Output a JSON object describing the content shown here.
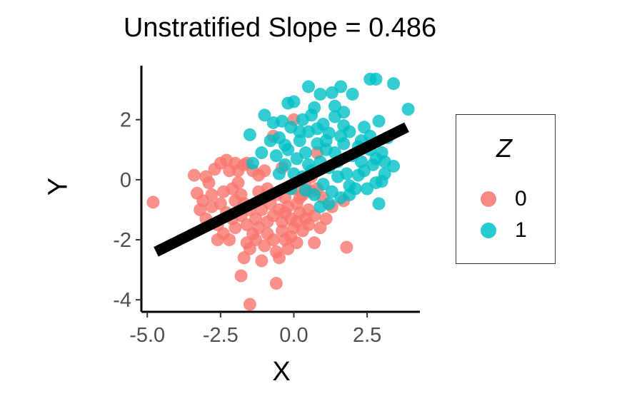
{
  "chart_data": {
    "type": "scatter",
    "title": "Unstratified Slope = 0.486",
    "xlabel": "X",
    "ylabel": "Y",
    "xlim": [
      -5.2,
      4.3
    ],
    "ylim": [
      -4.4,
      3.8
    ],
    "x_ticks": [
      -5.0,
      -2.5,
      0.0,
      2.5
    ],
    "x_tick_labels": [
      "-5.0",
      "-2.5",
      "0.0",
      "2.5"
    ],
    "y_ticks": [
      -4,
      -2,
      0,
      2
    ],
    "y_tick_labels": [
      "-4",
      "-2",
      "0",
      "2"
    ],
    "grid": false,
    "legend": {
      "title": "Z",
      "placement": "right",
      "entries": [
        {
          "label": "0",
          "color": "#F8766D"
        },
        {
          "label": "1",
          "color": "#00BFC4"
        }
      ]
    },
    "series": [
      {
        "name": "0",
        "color": "#F8766D",
        "points": [
          [
            -4.8,
            -0.75
          ],
          [
            -3.4,
            0.15
          ],
          [
            -3.0,
            0.1
          ],
          [
            -2.7,
            0.35
          ],
          [
            -2.5,
            0.55
          ],
          [
            -2.3,
            0.65
          ],
          [
            -2.2,
            0.3
          ],
          [
            -2.0,
            0.55
          ],
          [
            -1.9,
            0.3
          ],
          [
            -1.7,
            0.5
          ],
          [
            -1.6,
            0.55
          ],
          [
            -1.4,
            0.3
          ],
          [
            -1.2,
            0.15
          ],
          [
            -1.0,
            0.3
          ],
          [
            -1.9,
            -0.1
          ],
          [
            -1.8,
            -0.5
          ],
          [
            -1.7,
            -0.8
          ],
          [
            -2.1,
            -0.3
          ],
          [
            -2.4,
            -0.4
          ],
          [
            -2.9,
            -0.1
          ],
          [
            -3.1,
            -0.7
          ],
          [
            -3.2,
            -1.0
          ],
          [
            -3.0,
            -1.3
          ],
          [
            -2.8,
            -0.9
          ],
          [
            -2.6,
            -1.5
          ],
          [
            -2.5,
            -0.8
          ],
          [
            -2.3,
            -1.1
          ],
          [
            -2.1,
            -1.3
          ],
          [
            -2.4,
            -1.8
          ],
          [
            -2.6,
            -2.0
          ],
          [
            -2.2,
            -2.0
          ],
          [
            -2.0,
            -1.6
          ],
          [
            -1.8,
            -1.2
          ],
          [
            -1.5,
            -1.0
          ],
          [
            -1.6,
            -1.5
          ],
          [
            -1.4,
            -1.8
          ],
          [
            -1.3,
            -1.3
          ],
          [
            -1.1,
            -1.0
          ],
          [
            -1.0,
            -0.6
          ],
          [
            -0.9,
            -0.3
          ],
          [
            -0.8,
            -0.8
          ],
          [
            -0.7,
            -1.2
          ],
          [
            -0.6,
            -0.5
          ],
          [
            -0.5,
            -1.0
          ],
          [
            -0.4,
            -1.4
          ],
          [
            -0.3,
            -0.6
          ],
          [
            -0.2,
            -0.9
          ],
          [
            -0.1,
            -1.3
          ],
          [
            0.0,
            -1.6
          ],
          [
            0.1,
            -0.8
          ],
          [
            0.2,
            -1.1
          ],
          [
            0.3,
            -0.5
          ],
          [
            0.4,
            -1.3
          ],
          [
            0.5,
            -1.0
          ],
          [
            0.6,
            -0.4
          ],
          [
            0.7,
            -1.2
          ],
          [
            -1.2,
            -1.6
          ],
          [
            -1.3,
            -2.0
          ],
          [
            -1.5,
            -2.3
          ],
          [
            -1.7,
            -2.6
          ],
          [
            -1.8,
            -3.2
          ],
          [
            -1.6,
            -2.1
          ],
          [
            -1.0,
            -2.2
          ],
          [
            -0.9,
            -1.8
          ],
          [
            -0.7,
            -2.0
          ],
          [
            -0.6,
            -2.4
          ],
          [
            -0.5,
            -2.6
          ],
          [
            -0.3,
            -2.0
          ],
          [
            -0.2,
            -2.3
          ],
          [
            -0.1,
            -1.9
          ],
          [
            0.1,
            -2.1
          ],
          [
            0.3,
            -1.7
          ],
          [
            0.5,
            -1.5
          ],
          [
            -1.5,
            -4.15
          ],
          [
            -0.6,
            -3.45
          ],
          [
            -1.1,
            -2.7
          ],
          [
            -0.9,
            -1.4
          ],
          [
            -0.4,
            -1.7
          ],
          [
            0.0,
            -0.3
          ],
          [
            0.2,
            -0.6
          ],
          [
            0.4,
            -0.2
          ],
          [
            0.6,
            0.1
          ],
          [
            0.8,
            -0.3
          ],
          [
            1.0,
            -0.6
          ],
          [
            1.3,
            -0.9
          ],
          [
            1.7,
            -0.7
          ],
          [
            1.8,
            -2.25
          ],
          [
            0.7,
            -2.1
          ],
          [
            0.9,
            -1.6
          ],
          [
            1.1,
            -1.3
          ],
          [
            -0.7,
            1.45
          ],
          [
            0.0,
            2.0
          ],
          [
            0.8,
            0.9
          ],
          [
            -2.0,
            -0.7
          ],
          [
            -1.2,
            -0.4
          ],
          [
            -0.4,
            0.4
          ],
          [
            -0.3,
            -1.1
          ],
          [
            0.1,
            -1.4
          ],
          [
            -2.8,
            -0.5
          ],
          [
            -3.3,
            -0.45
          ]
        ]
      },
      {
        "name": "1",
        "color": "#00BFC4",
        "points": [
          [
            2.6,
            3.35
          ],
          [
            2.8,
            3.35
          ],
          [
            3.4,
            3.2
          ],
          [
            1.6,
            3.1
          ],
          [
            0.5,
            3.1
          ],
          [
            0.9,
            2.85
          ],
          [
            1.3,
            2.9
          ],
          [
            2.0,
            2.85
          ],
          [
            -0.2,
            2.55
          ],
          [
            0.0,
            2.6
          ],
          [
            1.4,
            2.45
          ],
          [
            1.7,
            2.25
          ],
          [
            -1.0,
            2.15
          ],
          [
            -0.7,
            1.9
          ],
          [
            -0.4,
            1.95
          ],
          [
            -0.1,
            1.75
          ],
          [
            0.3,
            2.0
          ],
          [
            0.6,
            2.15
          ],
          [
            1.0,
            1.85
          ],
          [
            1.2,
            1.55
          ],
          [
            1.6,
            1.45
          ],
          [
            1.9,
            1.6
          ],
          [
            2.4,
            1.75
          ],
          [
            2.6,
            1.45
          ],
          [
            2.9,
            1.95
          ],
          [
            3.2,
            1.4
          ],
          [
            3.9,
            2.35
          ],
          [
            -1.5,
            1.5
          ],
          [
            -0.5,
            1.4
          ],
          [
            -0.3,
            1.15
          ],
          [
            0.2,
            1.3
          ],
          [
            0.5,
            1.6
          ],
          [
            0.8,
            1.2
          ],
          [
            1.1,
            1.0
          ],
          [
            1.4,
            0.9
          ],
          [
            1.7,
            1.2
          ],
          [
            2.0,
            0.8
          ],
          [
            2.3,
            0.6
          ],
          [
            2.6,
            1.0
          ],
          [
            2.8,
            0.7
          ],
          [
            3.1,
            0.6
          ],
          [
            3.4,
            0.45
          ],
          [
            3.1,
            0.2
          ],
          [
            2.8,
            -0.1
          ],
          [
            2.5,
            -0.3
          ],
          [
            2.2,
            0.15
          ],
          [
            1.9,
            -0.2
          ],
          [
            1.5,
            0.1
          ],
          [
            1.2,
            0.4
          ],
          [
            0.9,
            0.6
          ],
          [
            0.6,
            0.3
          ],
          [
            0.3,
            0.1
          ],
          [
            0.0,
            0.2
          ],
          [
            -0.3,
            0.5
          ],
          [
            -0.6,
            0.8
          ],
          [
            -1.1,
            0.9
          ],
          [
            -1.4,
            0.55
          ],
          [
            -0.1,
            -0.3
          ],
          [
            0.4,
            -0.35
          ],
          [
            0.7,
            -0.5
          ],
          [
            1.0,
            -0.15
          ],
          [
            1.3,
            -0.4
          ],
          [
            1.6,
            -0.6
          ],
          [
            1.9,
            -0.5
          ],
          [
            2.1,
            -0.3
          ],
          [
            2.4,
            0.3
          ],
          [
            2.7,
            0.5
          ],
          [
            3.0,
            0.9
          ],
          [
            2.2,
            1.1
          ],
          [
            1.5,
            0.6
          ],
          [
            1.1,
            1.3
          ],
          [
            0.8,
            1.7
          ],
          [
            0.4,
            0.9
          ],
          [
            0.1,
            0.7
          ],
          [
            -0.2,
            1.0
          ],
          [
            1.8,
            0.2
          ],
          [
            1.2,
            -0.8
          ],
          [
            0.9,
            -0.9
          ],
          [
            3.0,
            -0.05
          ],
          [
            2.9,
            -0.8
          ],
          [
            1.4,
            2.1
          ],
          [
            0.7,
            2.4
          ],
          [
            0.2,
            1.6
          ],
          [
            -0.8,
            1.3
          ],
          [
            2.3,
            1.3
          ],
          [
            1.7,
            1.8
          ],
          [
            0.5,
            0.5
          ],
          [
            -0.5,
            0.2
          ]
        ]
      }
    ],
    "fit_line": {
      "slope": 0.486,
      "x": [
        -4.7,
        3.85
      ],
      "y": [
        -2.4,
        1.75
      ],
      "color": "#000000"
    }
  }
}
